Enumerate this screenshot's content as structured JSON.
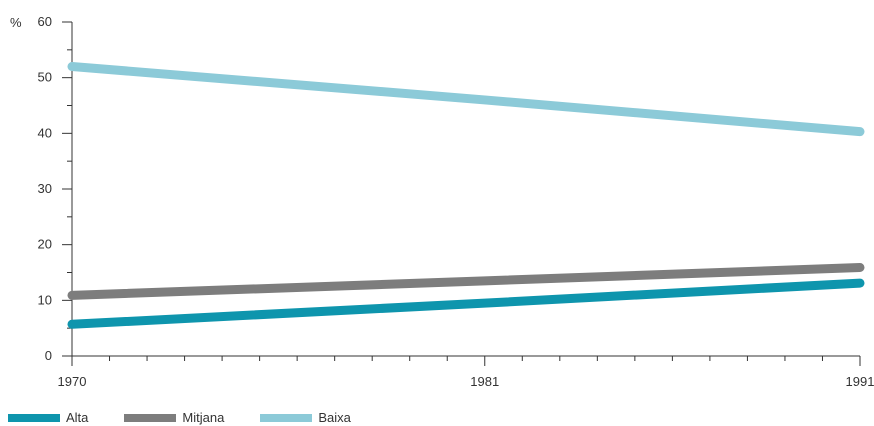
{
  "chart_data": {
    "type": "line",
    "x": [
      1970,
      1981,
      1991
    ],
    "xticks": [
      "1970",
      "1981",
      "1991"
    ],
    "ylabel": "%",
    "ylim": [
      0,
      60
    ],
    "yticks": [
      "0",
      "10",
      "20",
      "30",
      "40",
      "50",
      "60"
    ],
    "grid": false,
    "legend_position": "bottom-left",
    "series": [
      {
        "name": "Alta",
        "color": "#0e95ad",
        "values": [
          5.7,
          9.5,
          13.1
        ]
      },
      {
        "name": "Mitjana",
        "color": "#7d7d7d",
        "values": [
          10.9,
          13.5,
          15.9
        ]
      },
      {
        "name": "Baixa",
        "color": "#8ccad8",
        "values": [
          52.0,
          46.0,
          40.3
        ]
      }
    ]
  },
  "legend": {
    "items": [
      {
        "label": "Alta",
        "color": "#0e95ad"
      },
      {
        "label": "Mitjana",
        "color": "#7d7d7d"
      },
      {
        "label": "Baixa",
        "color": "#8ccad8"
      }
    ]
  }
}
